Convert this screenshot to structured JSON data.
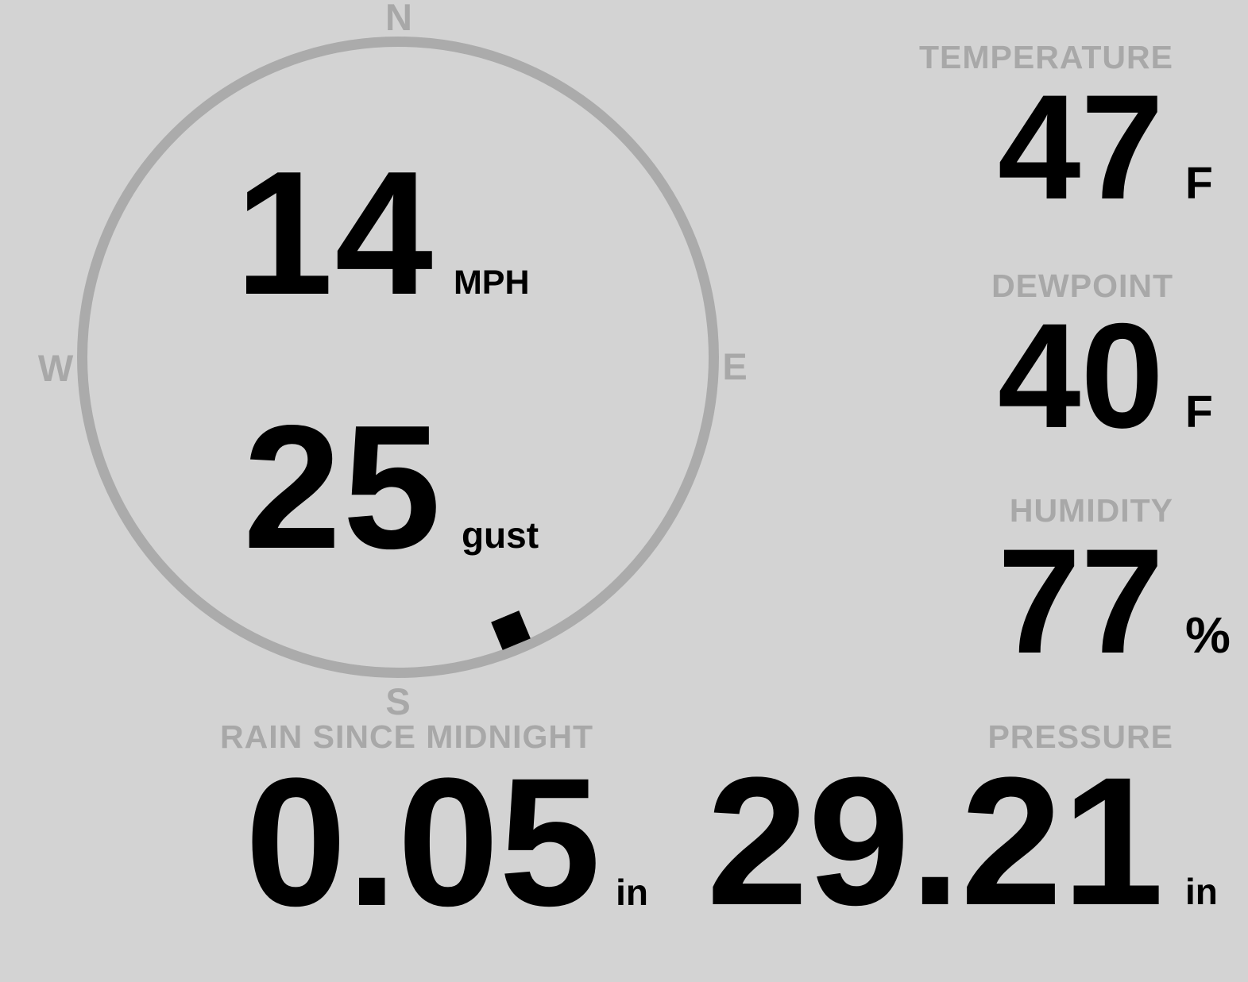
{
  "colors": {
    "background": "#d3d3d3",
    "label": "#a8a8a8",
    "ring": "#ababab",
    "value": "#000000",
    "marker": "#000000"
  },
  "wind": {
    "speed": "14",
    "speed_unit": "MPH",
    "gust": "25",
    "gust_unit": "gust",
    "direction_degrees": 157.5,
    "compass": {
      "north": "N",
      "east": "E",
      "south": "S",
      "west": "W"
    }
  },
  "metrics": {
    "temperature": {
      "label": "TEMPERATURE",
      "value": "47",
      "unit": "F"
    },
    "dewpoint": {
      "label": "DEWPOINT",
      "value": "40",
      "unit": "F"
    },
    "humidity": {
      "label": "HUMIDITY",
      "value": "77",
      "unit": "%"
    },
    "rain": {
      "label": "RAIN SINCE MIDNIGHT",
      "value": "0.05",
      "unit": "in"
    },
    "pressure": {
      "label": "PRESSURE",
      "value": "29.21",
      "unit": "in"
    }
  }
}
